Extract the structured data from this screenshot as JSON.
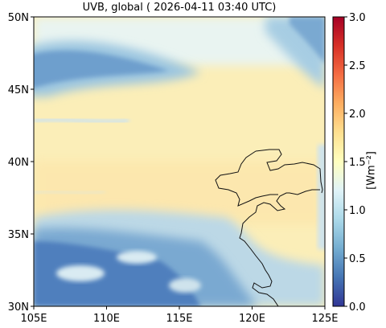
{
  "map": {
    "title": "UVB, global ( 2026-04-11 03:40 UTC)",
    "lat_ticks": [
      "50N",
      "45N",
      "40N",
      "35N",
      "30N"
    ],
    "lon_ticks": [
      "105E",
      "110E",
      "115E",
      "120E",
      "125E"
    ],
    "extent": {
      "lon_min": 105,
      "lon_max": 125,
      "lat_min": 30,
      "lat_max": 50
    },
    "colormap": "RdYlBu_r",
    "colors": {
      "low": "#3c59a6",
      "mid": "#fcedb3",
      "high": "#a50026"
    }
  },
  "colorbar": {
    "label": "[Wm⁻²]",
    "ticks": [
      "3.0",
      "2.5",
      "2.0",
      "1.5",
      "1.0",
      "0.5",
      "0.0"
    ],
    "range": [
      0.0,
      3.0
    ]
  }
}
